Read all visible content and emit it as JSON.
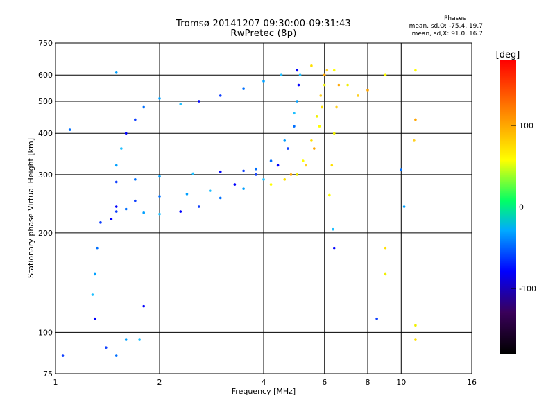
{
  "header": {
    "title_line1": "Tromsø 20141207 09:30:00-09:31:43",
    "title_line2": "RwPretec (8p)",
    "stats_title": "Phases",
    "stats_o": "mean, sd,O: -75.4, 19.7",
    "stats_x": "mean, sd,X:  91.0, 16.7"
  },
  "chart_data": {
    "type": "scatter",
    "title": "Tromsø 20141207 09:30:00-09:31:43",
    "subtitle": "RwPretec (8p)",
    "xlabel": "Frequency [MHz]",
    "ylabel": "Stationary phase Virtual Height [km]",
    "x_scale": "log",
    "y_scale": "log",
    "xlim": [
      1,
      16
    ],
    "ylim": [
      75,
      750
    ],
    "x_ticks": [
      1,
      2,
      4,
      6,
      8,
      10,
      16
    ],
    "y_ticks": [
      75,
      100,
      200,
      300,
      400,
      500,
      600,
      750
    ],
    "grid": true,
    "colorbar": {
      "label": "[deg]",
      "range": [
        -180,
        180
      ],
      "ticks": [
        -100,
        0,
        100
      ],
      "colors": [
        "#000000",
        "#3a005a",
        "#0000ff",
        "#00aaff",
        "#00ff66",
        "#ffff00",
        "#ff8800",
        "#ff0000"
      ]
    },
    "series": [
      {
        "name": "O",
        "mean_phase": -75.4,
        "sd_phase": 19.7,
        "points": [
          [
            1.45,
            220
          ],
          [
            1.5,
            232
          ],
          [
            1.6,
            236
          ],
          [
            1.8,
            230
          ],
          [
            2.0,
            228
          ],
          [
            2.3,
            232
          ],
          [
            2.6,
            240
          ],
          [
            3.0,
            255
          ],
          [
            3.5,
            272
          ],
          [
            4.0,
            290
          ],
          [
            4.4,
            320
          ],
          [
            4.7,
            360
          ],
          [
            4.9,
            420
          ],
          [
            5.0,
            500
          ],
          [
            5.1,
            600
          ],
          [
            1.5,
            240
          ],
          [
            1.7,
            250
          ],
          [
            2.0,
            258
          ],
          [
            2.4,
            262
          ],
          [
            2.8,
            268
          ],
          [
            3.3,
            280
          ],
          [
            3.8,
            300
          ],
          [
            4.2,
            330
          ],
          [
            4.6,
            380
          ],
          [
            4.9,
            460
          ],
          [
            5.05,
            560
          ],
          [
            1.5,
            285
          ],
          [
            1.7,
            290
          ],
          [
            2.0,
            296
          ],
          [
            2.5,
            302
          ],
          [
            3.0,
            306
          ],
          [
            3.5,
            308
          ],
          [
            3.8,
            312
          ],
          [
            1.5,
            320
          ],
          [
            1.55,
            360
          ],
          [
            1.6,
            400
          ],
          [
            1.7,
            440
          ],
          [
            1.8,
            480
          ],
          [
            2.0,
            510
          ],
          [
            2.3,
            490
          ],
          [
            2.6,
            500
          ],
          [
            3.0,
            520
          ],
          [
            3.5,
            545
          ],
          [
            4.0,
            575
          ],
          [
            4.5,
            600
          ],
          [
            5.0,
            620
          ],
          [
            1.35,
            215
          ],
          [
            1.32,
            180
          ],
          [
            1.3,
            150
          ],
          [
            1.28,
            130
          ],
          [
            1.3,
            110
          ],
          [
            1.4,
            90
          ],
          [
            1.5,
            85
          ],
          [
            1.6,
            95
          ],
          [
            1.75,
            95
          ],
          [
            1.8,
            120
          ],
          [
            1.05,
            85
          ],
          [
            1.1,
            410
          ],
          [
            1.5,
            610
          ],
          [
            6.35,
            205
          ],
          [
            6.4,
            180
          ],
          [
            8.5,
            110
          ],
          [
            10.0,
            310
          ],
          [
            10.2,
            240
          ]
        ]
      },
      {
        "name": "X",
        "mean_phase": 91.0,
        "sd_phase": 16.7,
        "points": [
          [
            4.2,
            280
          ],
          [
            4.6,
            290
          ],
          [
            5.0,
            300
          ],
          [
            5.3,
            320
          ],
          [
            5.6,
            360
          ],
          [
            5.8,
            420
          ],
          [
            5.9,
            480
          ],
          [
            6.0,
            560
          ],
          [
            6.1,
            620
          ],
          [
            4.8,
            300
          ],
          [
            5.2,
            330
          ],
          [
            5.5,
            380
          ],
          [
            5.7,
            450
          ],
          [
            5.85,
            520
          ],
          [
            6.0,
            600
          ],
          [
            6.2,
            260
          ],
          [
            6.3,
            320
          ],
          [
            6.4,
            400
          ],
          [
            6.5,
            480
          ],
          [
            6.6,
            560
          ],
          [
            6.4,
            620
          ],
          [
            5.5,
            640
          ],
          [
            7.0,
            560
          ],
          [
            7.5,
            520
          ],
          [
            8.0,
            540
          ],
          [
            9.0,
            600
          ],
          [
            9.0,
            180
          ],
          [
            9.0,
            150
          ],
          [
            10.9,
            380
          ],
          [
            11.0,
            440
          ],
          [
            11.0,
            620
          ],
          [
            11.0,
            95
          ],
          [
            11.0,
            105
          ]
        ]
      }
    ]
  },
  "axes": {
    "x_tick_labels": [
      "1",
      "2",
      "4",
      "6",
      "8",
      "10",
      "16"
    ],
    "y_tick_labels": [
      "75",
      "100",
      "200",
      "300",
      "400",
      "500",
      "600",
      "750"
    ],
    "colorbar_tick_labels": [
      "100",
      "0",
      "-100"
    ]
  }
}
